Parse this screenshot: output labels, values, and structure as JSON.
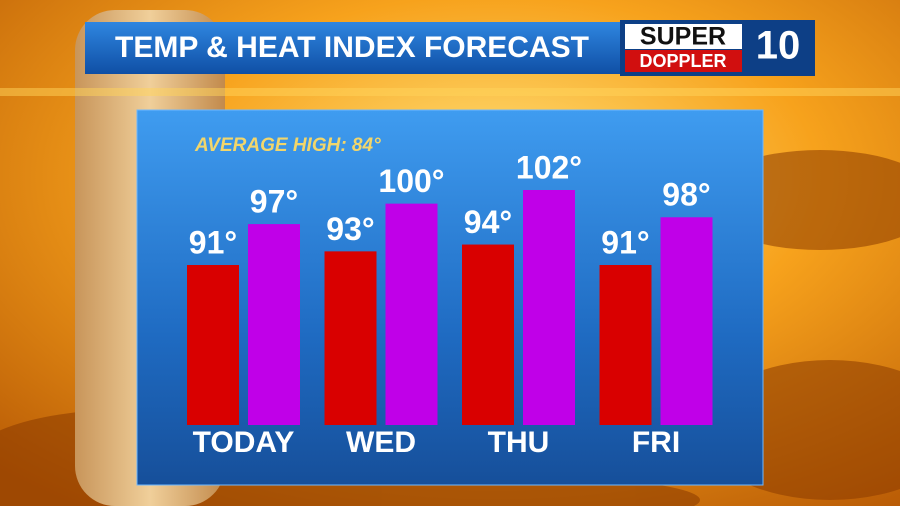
{
  "chart_data": {
    "type": "bar",
    "title": "TEMP & HEAT INDEX FORECAST",
    "logo": {
      "line1": "SUPER",
      "line2": "DOPPLER",
      "number": "10"
    },
    "annotation": "AVERAGE HIGH: 84°",
    "categories": [
      "TODAY",
      "WED",
      "THU",
      "FRI"
    ],
    "series": [
      {
        "color": "#d90000",
        "values": [
          91,
          93,
          94,
          91
        ],
        "value_labels": [
          "91°",
          "93°",
          "94°",
          "91°"
        ]
      },
      {
        "color": "#c000e8",
        "values": [
          97,
          100,
          102,
          98
        ],
        "value_labels": [
          "97°",
          "100°",
          "102°",
          "98°"
        ]
      }
    ]
  }
}
